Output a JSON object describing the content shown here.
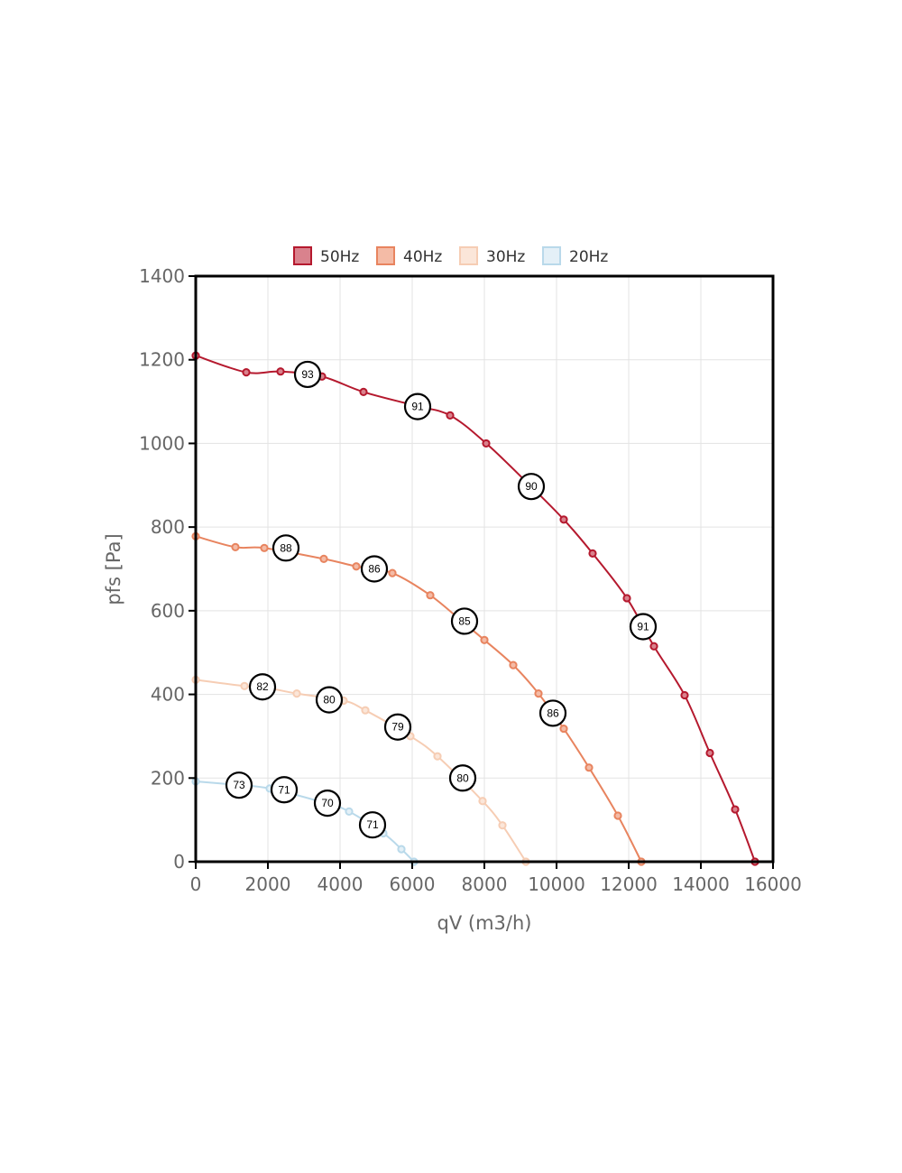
{
  "chart_data": {
    "type": "line",
    "title": "",
    "xlabel": "qV (m3/h)",
    "ylabel": "pfs [Pa]",
    "xlim": [
      0,
      16000
    ],
    "ylim": [
      0,
      1400
    ],
    "x_ticks": [
      "0",
      "2000",
      "4000",
      "6000",
      "8000",
      "10000",
      "12000",
      "14000",
      "16000"
    ],
    "y_ticks": [
      "0",
      "200",
      "400",
      "600",
      "800",
      "1000",
      "1200",
      "1400"
    ],
    "grid": true,
    "legend_position": "top-center",
    "series": [
      {
        "name": "50Hz",
        "color": "#b5192e",
        "fill": "#d9828d",
        "points": [
          [
            0,
            1210
          ],
          [
            1400,
            1170
          ],
          [
            2350,
            1172
          ],
          [
            3500,
            1160
          ],
          [
            4650,
            1123
          ],
          [
            6100,
            1090
          ],
          [
            7050,
            1067
          ],
          [
            8050,
            1000
          ],
          [
            9200,
            905
          ],
          [
            10200,
            818
          ],
          [
            11000,
            737
          ],
          [
            11950,
            630
          ],
          [
            12700,
            515
          ],
          [
            13550,
            398
          ],
          [
            14250,
            260
          ],
          [
            14950,
            125
          ],
          [
            15500,
            0
          ]
        ],
        "efficiency": [
          {
            "label": "93",
            "x": 3100,
            "y": 1165
          },
          {
            "label": "91",
            "x": 6150,
            "y": 1088
          },
          {
            "label": "90",
            "x": 9300,
            "y": 897
          },
          {
            "label": "91",
            "x": 12400,
            "y": 562
          }
        ]
      },
      {
        "name": "40Hz",
        "color": "#e8845f",
        "fill": "#f4bba6",
        "points": [
          [
            0,
            778
          ],
          [
            1100,
            752
          ],
          [
            1900,
            750
          ],
          [
            3550,
            724
          ],
          [
            4450,
            706
          ],
          [
            5450,
            690
          ],
          [
            6500,
            637
          ],
          [
            7400,
            573
          ],
          [
            8000,
            530
          ],
          [
            8800,
            470
          ],
          [
            9500,
            402
          ],
          [
            10200,
            318
          ],
          [
            10900,
            225
          ],
          [
            11700,
            110
          ],
          [
            12350,
            0
          ]
        ],
        "efficiency": [
          {
            "label": "88",
            "x": 2500,
            "y": 750
          },
          {
            "label": "86",
            "x": 4950,
            "y": 700
          },
          {
            "label": "85",
            "x": 7450,
            "y": 575
          },
          {
            "label": "86",
            "x": 9900,
            "y": 355
          }
        ]
      },
      {
        "name": "30Hz",
        "color": "#f6cdb4",
        "fill": "#fbe6d9",
        "points": [
          [
            0,
            435
          ],
          [
            1350,
            420
          ],
          [
            1850,
            418
          ],
          [
            2800,
            402
          ],
          [
            4100,
            385
          ],
          [
            4700,
            362
          ],
          [
            5950,
            300
          ],
          [
            6700,
            252
          ],
          [
            7950,
            145
          ],
          [
            8500,
            87
          ],
          [
            9150,
            0
          ]
        ],
        "efficiency": [
          {
            "label": "82",
            "x": 1850,
            "y": 418
          },
          {
            "label": "80",
            "x": 3700,
            "y": 387
          },
          {
            "label": "79",
            "x": 5600,
            "y": 322
          },
          {
            "label": "80",
            "x": 7400,
            "y": 200
          }
        ]
      },
      {
        "name": "20Hz",
        "color": "#b9d9ea",
        "fill": "#e4f0f7",
        "points": [
          [
            0,
            192
          ],
          [
            1200,
            183
          ],
          [
            2050,
            175
          ],
          [
            3600,
            140
          ],
          [
            4250,
            120
          ],
          [
            5200,
            68
          ],
          [
            5700,
            30
          ],
          [
            6050,
            0
          ]
        ],
        "efficiency": [
          {
            "label": "73",
            "x": 1200,
            "y": 183
          },
          {
            "label": "71",
            "x": 2450,
            "y": 172
          },
          {
            "label": "70",
            "x": 3650,
            "y": 140
          },
          {
            "label": "71",
            "x": 4900,
            "y": 88
          }
        ]
      }
    ]
  }
}
